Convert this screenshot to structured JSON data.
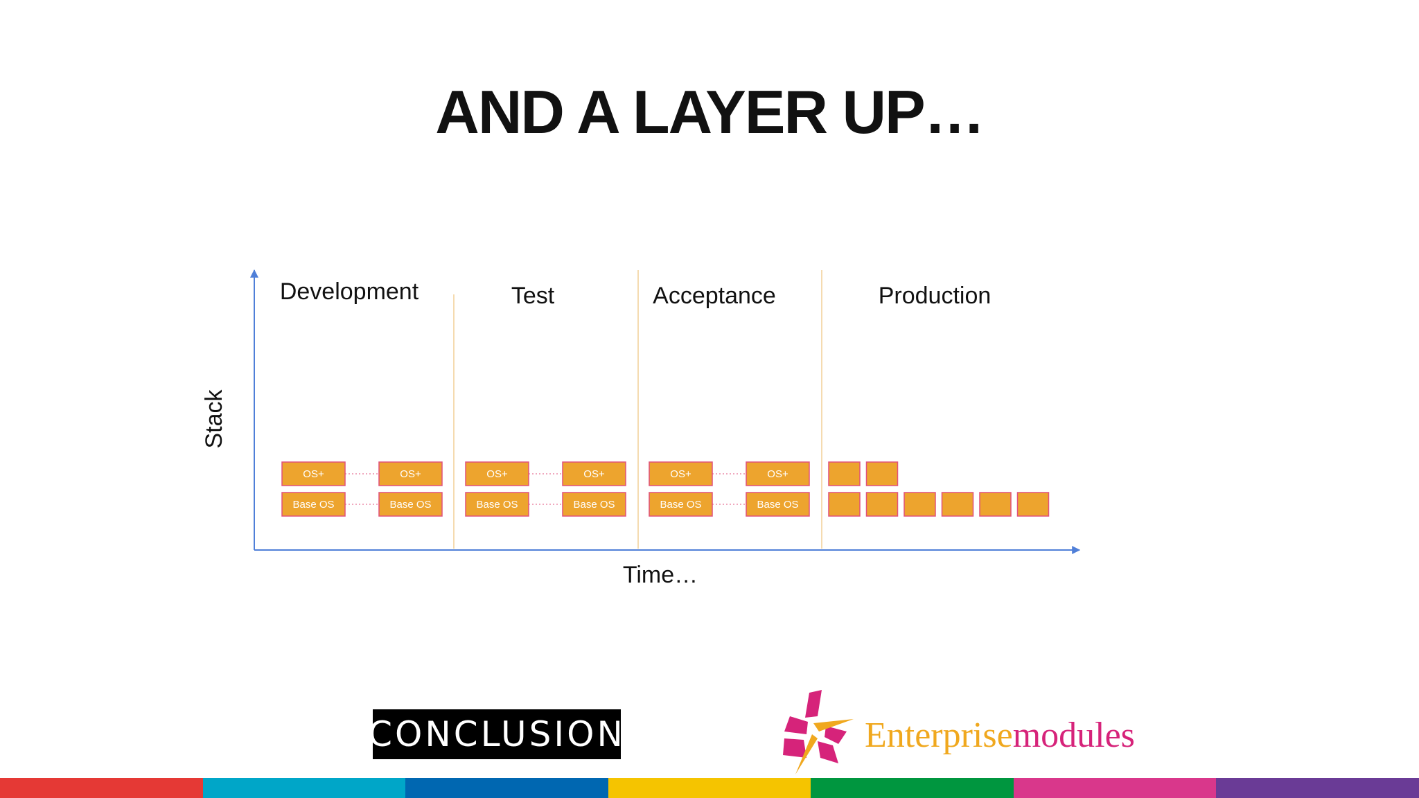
{
  "slide": {
    "title": "AND A LAYER UP…"
  },
  "diagram": {
    "y_axis_label": "Stack",
    "x_axis_label": "Time…",
    "phases": [
      "Development",
      "Test",
      "Acceptance",
      "Production"
    ],
    "paired_box_labels": {
      "top": "OS+",
      "bottom": "Base OS"
    },
    "paired_environments_per_phase": 2,
    "production_top_row_boxes": 2,
    "production_bottom_row_boxes": 6,
    "colors": {
      "box_fill": "#eda42e",
      "box_border": "#e0507c",
      "axis": "#4f7fd8",
      "divider": "#f2cf96"
    }
  },
  "logos": {
    "conclusion": "CONCLUSION",
    "enterprisemodules_part1": "Enterprise",
    "enterprisemodules_part2": "modules"
  },
  "footer_colors": [
    "#e53935",
    "#00a6c8",
    "#0067b1",
    "#f5c400",
    "#00963f",
    "#d9378b",
    "#6a3b96"
  ]
}
